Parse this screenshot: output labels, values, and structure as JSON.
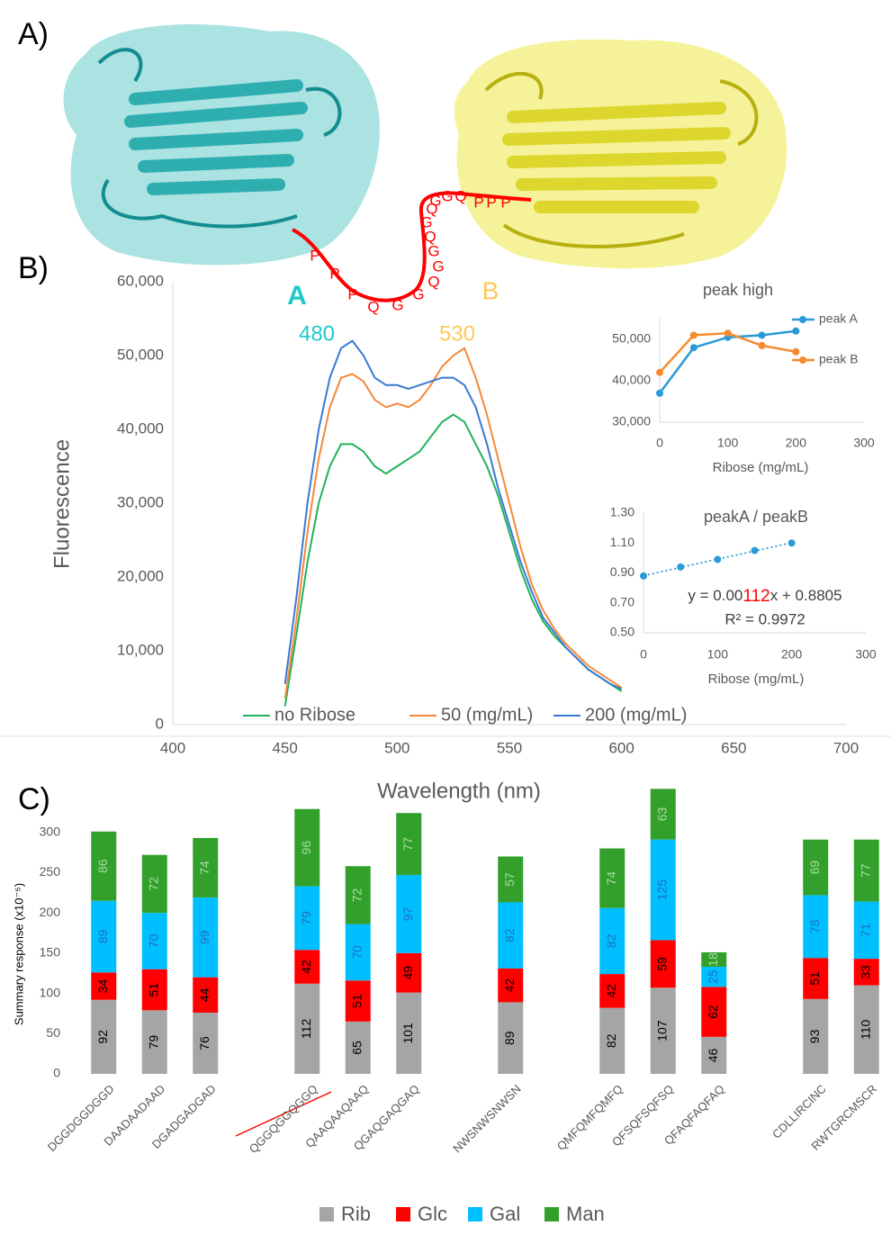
{
  "panel_labels": [
    "A)",
    "B)",
    "C)"
  ],
  "linker": {
    "letters": [
      "P",
      "P",
      "P",
      "Q",
      "G",
      "G",
      "Q",
      "G",
      "G",
      "Q",
      "G",
      "Q",
      "G",
      "G",
      "Q",
      "P",
      "P",
      "P"
    ]
  },
  "chart_data": [
    {
      "type": "line",
      "y_label": "Fluorescence",
      "x_label": "Wavelength (nm)",
      "annotations": [
        "A",
        "480",
        "B",
        "530"
      ],
      "x": [
        450,
        455,
        460,
        465,
        470,
        475,
        480,
        485,
        490,
        495,
        500,
        505,
        510,
        515,
        520,
        525,
        530,
        535,
        540,
        545,
        550,
        555,
        560,
        565,
        570,
        575,
        580,
        585,
        590,
        595,
        600
      ],
      "series": [
        {
          "name": "no Ribose",
          "color": "#1fb35b",
          "values": [
            2500,
            12000,
            22000,
            30000,
            35000,
            38000,
            38000,
            37000,
            35000,
            34000,
            35000,
            36000,
            37000,
            39000,
            41000,
            42000,
            41000,
            38000,
            35000,
            31000,
            26000,
            21000,
            17000,
            14000,
            12000,
            10500,
            9000,
            7500,
            6500,
            5500,
            4500
          ]
        },
        {
          "name": "50 (mg/mL)",
          "color": "#f5883a",
          "values": [
            3500,
            14000,
            26000,
            36000,
            43000,
            47000,
            47500,
            46500,
            44000,
            43000,
            43500,
            43000,
            44000,
            46000,
            48500,
            50000,
            51000,
            47000,
            42000,
            36000,
            30000,
            24000,
            19000,
            15500,
            13000,
            11000,
            9500,
            8000,
            7000,
            6000,
            5000
          ]
        },
        {
          "name": "200 (mg/mL)",
          "color": "#3a78d2",
          "values": [
            5500,
            17000,
            30000,
            40000,
            47000,
            51000,
            52000,
            50000,
            47000,
            46000,
            46000,
            45500,
            46000,
            46500,
            47000,
            47000,
            46000,
            43000,
            38000,
            32000,
            27000,
            22000,
            18000,
            14500,
            12500,
            10500,
            9000,
            7500,
            6500,
            5500,
            4800
          ]
        }
      ],
      "xlim": [
        400,
        700
      ],
      "xticks": [
        400,
        450,
        500,
        550,
        600,
        650,
        700
      ],
      "ylim": [
        0,
        60000
      ],
      "yticks": [
        0,
        {
          "value": 10000,
          "label": "10,000"
        },
        {
          "value": 20000,
          "label": "20,000"
        },
        {
          "value": 30000,
          "label": "30,000"
        },
        {
          "value": 40000,
          "label": "40,000"
        },
        {
          "value": 50000,
          "label": "50,000"
        },
        {
          "value": 60000,
          "label": "60,000"
        }
      ],
      "grid": false
    },
    {
      "type": "line",
      "title": "peak high",
      "x_label": "Ribose (mg/mL)",
      "x": [
        0,
        50,
        100,
        150,
        200
      ],
      "series": [
        {
          "name": "peak A",
          "color": "#2a9ad8",
          "values": [
            37000,
            48000,
            50500,
            51000,
            52000
          ]
        },
        {
          "name": "peak B",
          "color": "#f58a2e",
          "values": [
            42000,
            51000,
            51500,
            48500,
            47000
          ]
        }
      ],
      "xlim": [
        0,
        300
      ],
      "xticks": [
        0,
        100,
        200,
        300
      ],
      "ylim": [
        30000,
        55000
      ],
      "yticks": [
        {
          "value": 30000,
          "label": "30,000"
        },
        {
          "value": 40000,
          "label": "40,000"
        },
        {
          "value": 50000,
          "label": "50,000"
        }
      ],
      "grid": false
    },
    {
      "type": "scatter",
      "title": "peakA / peakB",
      "x_label": "Ribose (mg/mL)",
      "equation_parts": [
        "y = 0.00",
        "112",
        "x + 0.8805"
      ],
      "r_squared": "R² = 0.9972",
      "x": [
        0,
        50,
        100,
        150,
        200
      ],
      "series": [
        {
          "color": "#2a9ad8",
          "values": [
            0.88,
            0.94,
            0.99,
            1.05,
            1.1
          ]
        }
      ],
      "trendline": true,
      "xlim": [
        0,
        300
      ],
      "xticks": [
        0,
        100,
        200,
        300
      ],
      "ylim": [
        0.5,
        1.3
      ],
      "yticks": [
        {
          "value": 0.5,
          "label": "0.50"
        },
        {
          "value": 0.7,
          "label": "0.70"
        },
        {
          "value": 0.9,
          "label": "0.90"
        },
        {
          "value": 1.1,
          "label": "1.10"
        },
        {
          "value": 1.3,
          "label": "1.30"
        }
      ],
      "grid": false
    },
    {
      "type": "stacked_bar",
      "y_label": "Summary response (x10⁻⁵)",
      "categories": [
        "DGGDGGDGGD",
        "DAADAADAAD",
        "DGADGADGAD",
        null,
        "QGGQGGQGGQ",
        "QAAQAAQAAQ",
        "QGAQGAQGAQ",
        null,
        "NWSNWSNWSN",
        null,
        "QMFQMFQMFQ",
        "QFSQFSQFSQ",
        "QFAQFAQFAQ",
        null,
        "CDLLIRCINC",
        "RWTGRCMSCR"
      ],
      "series": [
        {
          "name": "Rib",
          "color": "#a5a5a5",
          "label_color": "#000000",
          "values": [
            92,
            79,
            76,
            null,
            112,
            65,
            101,
            null,
            89,
            null,
            82,
            107,
            46,
            null,
            93,
            110
          ]
        },
        {
          "name": "Glc",
          "color": "#ff0000",
          "label_color": "#000000",
          "values": [
            34,
            51,
            44,
            null,
            42,
            51,
            49,
            null,
            42,
            null,
            42,
            59,
            62,
            null,
            51,
            33
          ]
        },
        {
          "name": "Gal",
          "color": "#00bfff",
          "label_color": "#1f6fc0",
          "values": [
            89,
            70,
            99,
            null,
            79,
            70,
            97,
            null,
            82,
            null,
            82,
            125,
            25,
            null,
            78,
            71
          ]
        },
        {
          "name": "Man",
          "color": "#33a02c",
          "label_color": "#a8dca0",
          "values": [
            86,
            72,
            74,
            null,
            96,
            72,
            77,
            null,
            57,
            null,
            74,
            63,
            18,
            null,
            69,
            77
          ]
        }
      ],
      "ylim": [
        0,
        360
      ],
      "yticks": [
        0,
        50,
        100,
        150,
        200,
        250,
        300
      ],
      "grid": false
    }
  ]
}
